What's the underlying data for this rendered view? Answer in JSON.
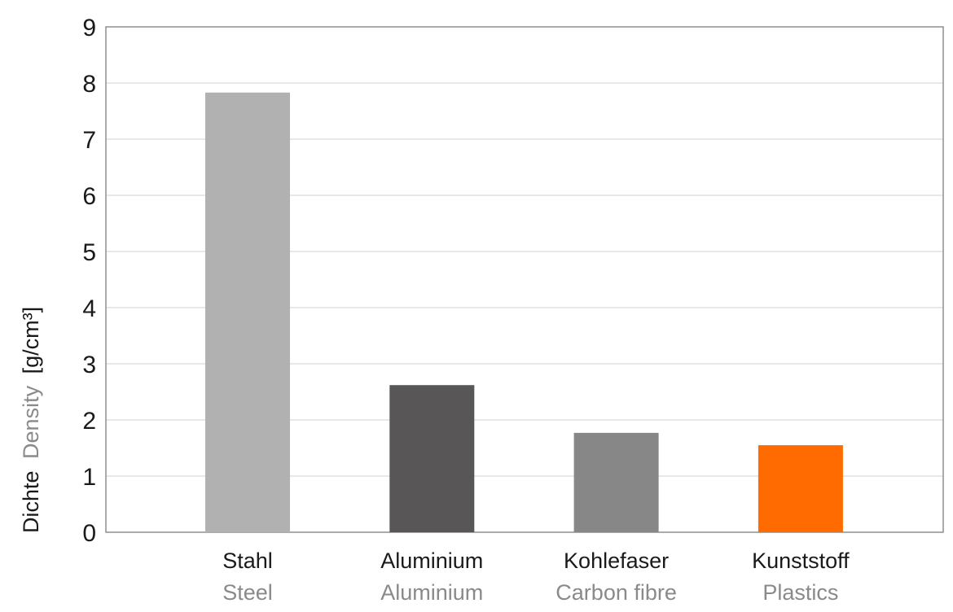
{
  "chart_data": {
    "type": "bar",
    "categories": [
      {
        "primary": "Stahl",
        "secondary": "Steel"
      },
      {
        "primary": "Aluminium",
        "secondary": "Aluminium"
      },
      {
        "primary": "Kohlefaser",
        "secondary": "Carbon fibre"
      },
      {
        "primary": "Kunststoff",
        "secondary": "Plastics"
      }
    ],
    "values": [
      7.83,
      2.62,
      1.77,
      1.55
    ],
    "colors": [
      "#b2b1b2",
      "#585657",
      "#878787",
      "#ff6b00"
    ],
    "ylabel": {
      "primary": "Dichte",
      "secondary": "Density",
      "unit": "[g/cm³]"
    },
    "ylim": [
      0,
      9
    ],
    "yticks": [
      0,
      1,
      2,
      3,
      4,
      5,
      6,
      7,
      8,
      9
    ],
    "grid": true,
    "legend": "none"
  }
}
